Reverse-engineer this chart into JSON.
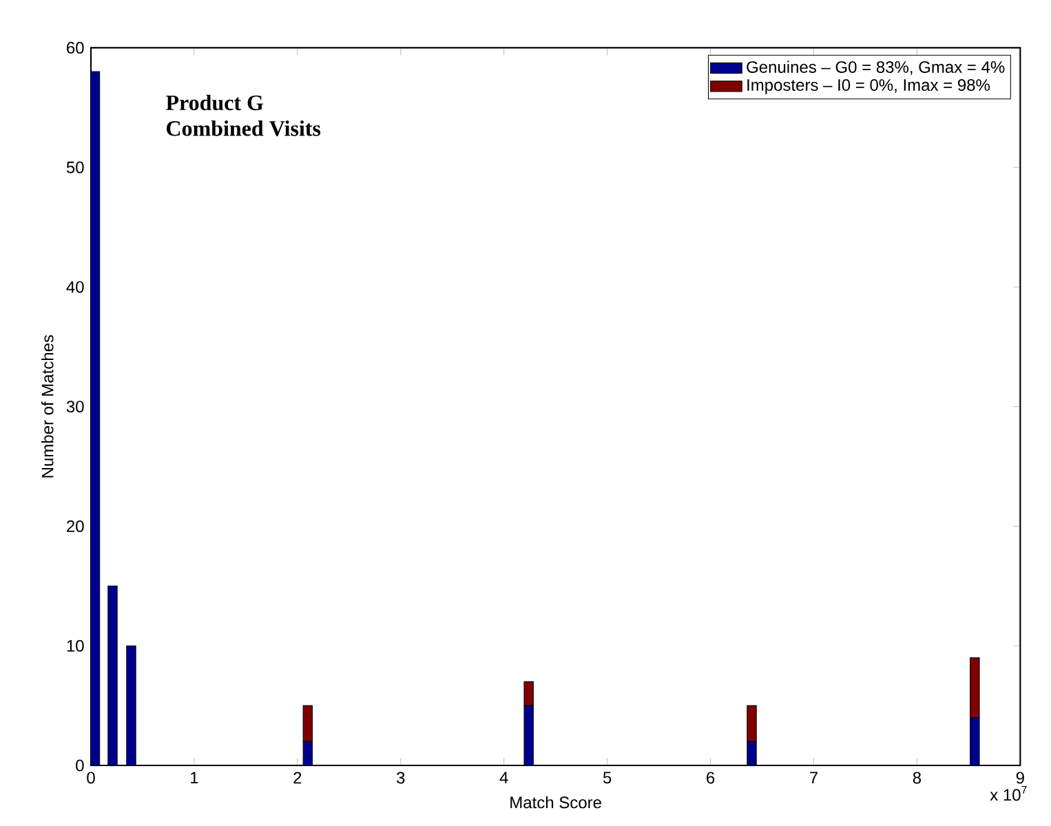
{
  "chart_data": {
    "type": "bar",
    "stacked": true,
    "xlabel": "Match Score",
    "ylabel": "Number of Matches",
    "annotations": [
      "Product G",
      "Combined Visits",
      "x 10$^{7}$"
    ],
    "x": [
      0.04,
      0.21,
      0.39,
      2.1,
      4.24,
      6.4,
      8.56
    ],
    "series": [
      {
        "name": "Genuines – G0 = 83%, Gmax = 4%",
        "color": "#00008f",
        "values": [
          58,
          15,
          10,
          2,
          5,
          2,
          4
        ]
      },
      {
        "name": "Imposters – I0 = 0%, Imax = 98%",
        "color": "#800000",
        "values": [
          0,
          0,
          0,
          3,
          2,
          3,
          5
        ]
      }
    ],
    "xlim": [
      0,
      9
    ],
    "xticks": [
      0,
      1,
      2,
      3,
      4,
      5,
      6,
      7,
      8,
      9
    ],
    "ylim": [
      0,
      60
    ],
    "yticks": [
      0,
      10,
      20,
      30,
      40,
      50,
      60
    ],
    "grid": false,
    "legend": "top right"
  }
}
